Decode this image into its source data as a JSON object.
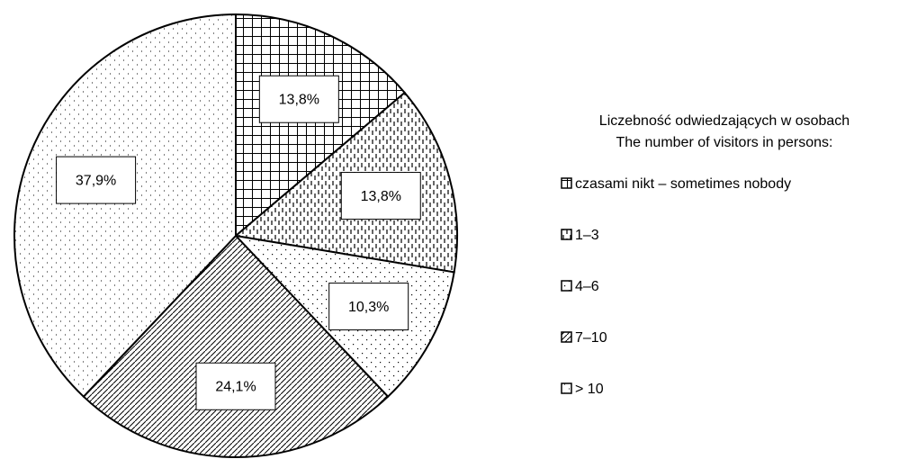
{
  "chart_data": {
    "type": "pie",
    "legend_title": [
      "Liczebność odwiedzających w osobach",
      "The number of visitors in persons:"
    ],
    "categories": [
      "czasami nikt – sometimes nobody",
      "1–3",
      "4–6",
      "7–10",
      "> 10"
    ],
    "values": [
      13.8,
      13.8,
      10.3,
      24.1,
      37.9
    ],
    "value_labels": [
      "13,8%",
      "13,8%",
      "10,3%",
      "24,1%",
      "37,9%"
    ],
    "legend": "right"
  }
}
